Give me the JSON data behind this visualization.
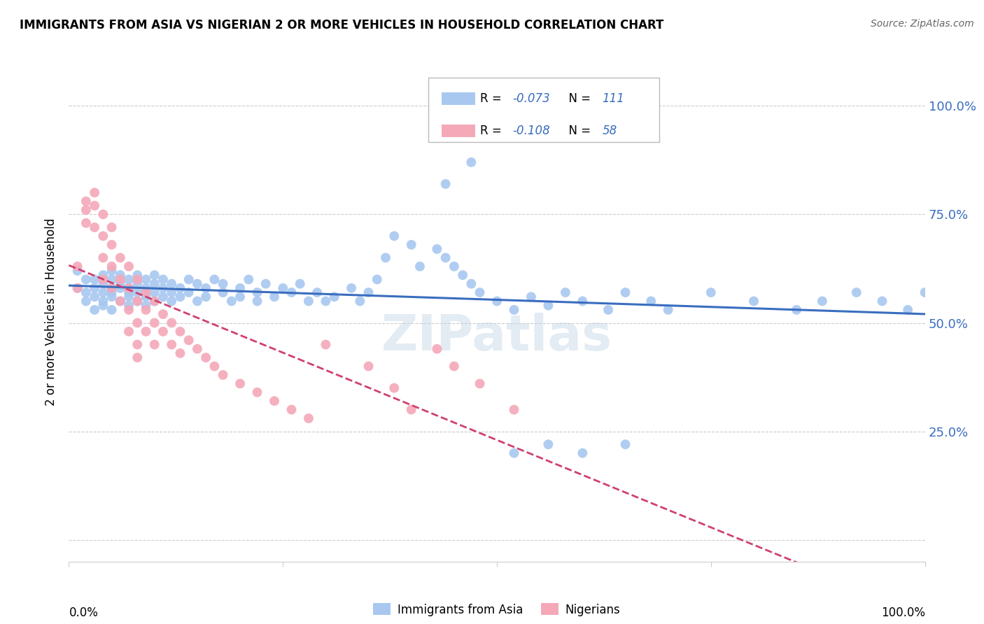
{
  "title": "IMMIGRANTS FROM ASIA VS NIGERIAN 2 OR MORE VEHICLES IN HOUSEHOLD CORRELATION CHART",
  "source": "Source: ZipAtlas.com",
  "ylabel": "2 or more Vehicles in Household",
  "ytick_vals": [
    0.0,
    0.25,
    0.5,
    0.75,
    1.0
  ],
  "ytick_labels": [
    "",
    "25.0%",
    "50.0%",
    "75.0%",
    "100.0%"
  ],
  "xlim": [
    0.0,
    1.0
  ],
  "ylim": [
    -0.05,
    1.1
  ],
  "legend_r_asia": "-0.073",
  "legend_n_asia": "111",
  "legend_r_nigerian": "-0.108",
  "legend_n_nigerian": "58",
  "color_asia": "#a8c8f0",
  "color_nigerian": "#f4a8b8",
  "line_color_asia": "#3a6dbf",
  "line_color_nigerian": "#d04070",
  "text_color_rv": "#3a6dbf",
  "background_color": "#ffffff",
  "grid_color": "#cccccc",
  "asia_x": [
    0.01,
    0.01,
    0.02,
    0.02,
    0.02,
    0.03,
    0.03,
    0.03,
    0.03,
    0.04,
    0.04,
    0.04,
    0.04,
    0.04,
    0.05,
    0.05,
    0.05,
    0.05,
    0.05,
    0.05,
    0.06,
    0.06,
    0.06,
    0.06,
    0.07,
    0.07,
    0.07,
    0.07,
    0.07,
    0.08,
    0.08,
    0.08,
    0.08,
    0.09,
    0.09,
    0.09,
    0.09,
    0.1,
    0.1,
    0.1,
    0.1,
    0.11,
    0.11,
    0.11,
    0.12,
    0.12,
    0.12,
    0.13,
    0.13,
    0.14,
    0.14,
    0.15,
    0.15,
    0.16,
    0.16,
    0.17,
    0.18,
    0.18,
    0.19,
    0.2,
    0.2,
    0.21,
    0.22,
    0.22,
    0.23,
    0.24,
    0.25,
    0.26,
    0.27,
    0.28,
    0.29,
    0.3,
    0.31,
    0.33,
    0.34,
    0.35,
    0.36,
    0.37,
    0.38,
    0.4,
    0.41,
    0.43,
    0.44,
    0.45,
    0.46,
    0.47,
    0.48,
    0.5,
    0.52,
    0.54,
    0.56,
    0.58,
    0.6,
    0.63,
    0.65,
    0.68,
    0.7,
    0.75,
    0.8,
    0.85,
    0.88,
    0.92,
    0.95,
    0.98,
    1.0,
    0.47,
    0.44,
    0.52,
    0.56,
    0.6,
    0.65
  ],
  "asia_y": [
    0.58,
    0.62,
    0.55,
    0.6,
    0.57,
    0.56,
    0.6,
    0.53,
    0.58,
    0.57,
    0.61,
    0.54,
    0.59,
    0.55,
    0.58,
    0.62,
    0.56,
    0.6,
    0.53,
    0.57,
    0.59,
    0.55,
    0.61,
    0.58,
    0.57,
    0.6,
    0.54,
    0.58,
    0.56,
    0.59,
    0.55,
    0.61,
    0.57,
    0.58,
    0.6,
    0.54,
    0.56,
    0.59,
    0.55,
    0.57,
    0.61,
    0.58,
    0.56,
    0.6,
    0.57,
    0.59,
    0.55,
    0.58,
    0.56,
    0.6,
    0.57,
    0.59,
    0.55,
    0.58,
    0.56,
    0.6,
    0.57,
    0.59,
    0.55,
    0.58,
    0.56,
    0.6,
    0.57,
    0.55,
    0.59,
    0.56,
    0.58,
    0.57,
    0.59,
    0.55,
    0.57,
    0.55,
    0.56,
    0.58,
    0.55,
    0.57,
    0.6,
    0.65,
    0.7,
    0.68,
    0.63,
    0.67,
    0.65,
    0.63,
    0.61,
    0.59,
    0.57,
    0.55,
    0.53,
    0.56,
    0.54,
    0.57,
    0.55,
    0.53,
    0.57,
    0.55,
    0.53,
    0.57,
    0.55,
    0.53,
    0.55,
    0.57,
    0.55,
    0.53,
    0.57,
    0.87,
    0.82,
    0.2,
    0.22,
    0.2,
    0.22
  ],
  "nigerian_x": [
    0.01,
    0.01,
    0.02,
    0.02,
    0.02,
    0.03,
    0.03,
    0.03,
    0.04,
    0.04,
    0.04,
    0.04,
    0.05,
    0.05,
    0.05,
    0.05,
    0.06,
    0.06,
    0.06,
    0.07,
    0.07,
    0.07,
    0.07,
    0.08,
    0.08,
    0.08,
    0.08,
    0.08,
    0.09,
    0.09,
    0.09,
    0.1,
    0.1,
    0.1,
    0.11,
    0.11,
    0.12,
    0.12,
    0.13,
    0.13,
    0.14,
    0.15,
    0.16,
    0.17,
    0.18,
    0.2,
    0.22,
    0.24,
    0.26,
    0.28,
    0.3,
    0.35,
    0.38,
    0.4,
    0.43,
    0.45,
    0.48,
    0.52
  ],
  "nigerian_y": [
    0.58,
    0.63,
    0.78,
    0.76,
    0.73,
    0.8,
    0.77,
    0.72,
    0.75,
    0.7,
    0.65,
    0.6,
    0.72,
    0.68,
    0.63,
    0.58,
    0.65,
    0.6,
    0.55,
    0.63,
    0.58,
    0.53,
    0.48,
    0.6,
    0.55,
    0.5,
    0.45,
    0.42,
    0.57,
    0.53,
    0.48,
    0.55,
    0.5,
    0.45,
    0.52,
    0.48,
    0.5,
    0.45,
    0.48,
    0.43,
    0.46,
    0.44,
    0.42,
    0.4,
    0.38,
    0.36,
    0.34,
    0.32,
    0.3,
    0.28,
    0.45,
    0.4,
    0.35,
    0.3,
    0.44,
    0.4,
    0.36,
    0.3
  ]
}
